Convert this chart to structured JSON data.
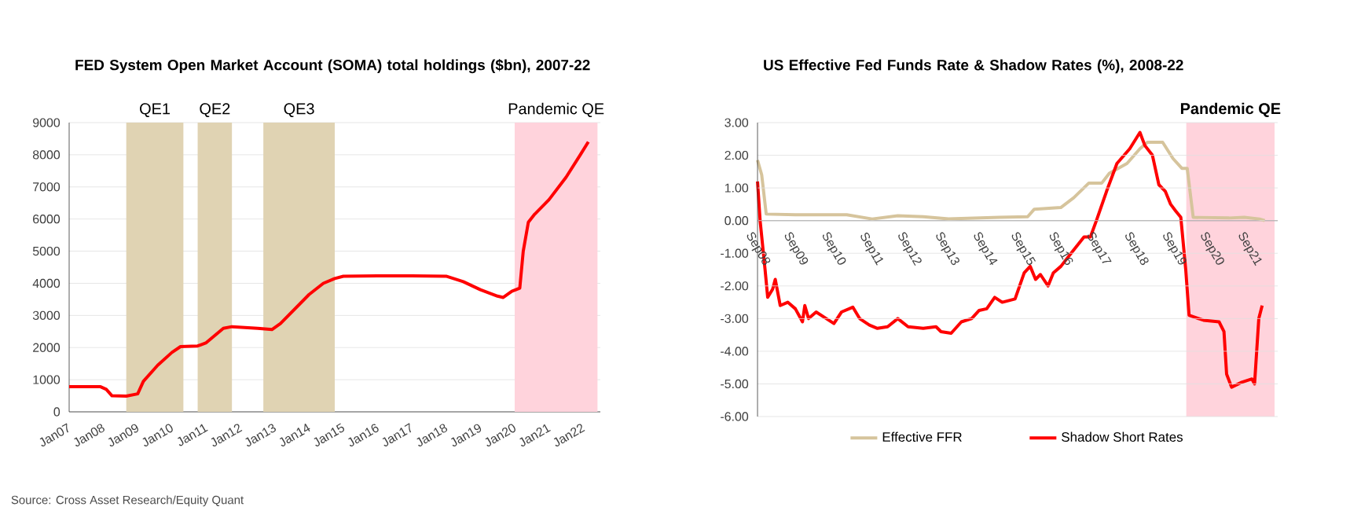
{
  "chart_data": [
    {
      "type": "line",
      "title": "FED System Open Market Account (SOMA) total holdings ($bn), 2007-22",
      "xlim": [
        "2007-01",
        "2022-07"
      ],
      "ylim": [
        0,
        9000
      ],
      "grid": "y",
      "legend": false,
      "xticks": [
        {
          "value": "2007-01",
          "label": "Jan07"
        },
        {
          "value": "2008-01",
          "label": "Jan08"
        },
        {
          "value": "2009-01",
          "label": "Jan09"
        },
        {
          "value": "2010-01",
          "label": "Jan10"
        },
        {
          "value": "2011-01",
          "label": "Jan11"
        },
        {
          "value": "2012-01",
          "label": "Jan12"
        },
        {
          "value": "2013-01",
          "label": "Jan13"
        },
        {
          "value": "2014-01",
          "label": "Jan14"
        },
        {
          "value": "2015-01",
          "label": "Jan15"
        },
        {
          "value": "2016-01",
          "label": "Jan16"
        },
        {
          "value": "2017-01",
          "label": "Jan17"
        },
        {
          "value": "2018-01",
          "label": "Jan18"
        },
        {
          "value": "2019-01",
          "label": "Jan19"
        },
        {
          "value": "2020-01",
          "label": "Jan20"
        },
        {
          "value": "2021-01",
          "label": "Jan21"
        },
        {
          "value": "2022-01",
          "label": "Jan22"
        }
      ],
      "yticks": [
        0,
        1000,
        2000,
        3000,
        4000,
        5000,
        6000,
        7000,
        8000,
        9000
      ],
      "bands": [
        {
          "axis": "x",
          "from": "2008-09",
          "to": "2010-05",
          "label": "QE1",
          "color": "#e0d3b3"
        },
        {
          "axis": "x",
          "from": "2010-10",
          "to": "2011-10",
          "label": "QE2",
          "color": "#e0d3b3"
        },
        {
          "axis": "x",
          "from": "2012-09",
          "to": "2014-10",
          "label": "QE3",
          "color": "#e0d3b3"
        },
        {
          "axis": "x",
          "from": "2020-01",
          "to": "2022-06",
          "label": "Pandemic QE",
          "color": "#ffd3dc"
        }
      ],
      "series": [
        {
          "color": "#ff0000",
          "x": [
            "2007-01",
            "2007-12",
            "2008-02",
            "2008-04",
            "2008-09",
            "2009-01",
            "2009-03",
            "2009-08",
            "2010-01",
            "2010-04",
            "2010-10",
            "2011-01",
            "2011-07",
            "2011-10",
            "2012-07",
            "2012-12",
            "2013-03",
            "2013-08",
            "2014-01",
            "2014-06",
            "2014-10",
            "2015-01",
            "2016-01",
            "2017-01",
            "2018-01",
            "2018-07",
            "2019-01",
            "2019-07",
            "2019-09",
            "2019-12",
            "2020-02-25",
            "2020-04-01",
            "2020-05-25",
            "2020-08",
            "2021-01",
            "2021-07",
            "2021-12",
            "2022-02-25"
          ],
          "values": [
            780,
            780,
            700,
            500,
            490,
            560,
            950,
            1450,
            1850,
            2030,
            2050,
            2150,
            2600,
            2650,
            2600,
            2560,
            2750,
            3200,
            3650,
            4000,
            4150,
            4220,
            4230,
            4230,
            4220,
            4050,
            3800,
            3600,
            3560,
            3750,
            3850,
            5000,
            5900,
            6150,
            6600,
            7300,
            8000,
            8400
          ]
        }
      ],
      "annotations": [
        "Source: Cross Asset Research/Equity Quant"
      ]
    },
    {
      "type": "line",
      "title": "US Effective Fed Funds Rate & Shadow Rates (%), 2008-22",
      "xlim": [
        "2008-09",
        "2022-06"
      ],
      "ylim": [
        -6,
        3
      ],
      "grid": "y",
      "legend": "bottom",
      "xticks": [
        {
          "value": "2008-09",
          "label": "Sep08"
        },
        {
          "value": "2009-09",
          "label": "Sep09"
        },
        {
          "value": "2010-09",
          "label": "Sep10"
        },
        {
          "value": "2011-09",
          "label": "Sep11"
        },
        {
          "value": "2012-09",
          "label": "Sep12"
        },
        {
          "value": "2013-09",
          "label": "Sep13"
        },
        {
          "value": "2014-09",
          "label": "Sep14"
        },
        {
          "value": "2015-09",
          "label": "Sep15"
        },
        {
          "value": "2016-09",
          "label": "Sep16"
        },
        {
          "value": "2017-09",
          "label": "Sep17"
        },
        {
          "value": "2018-09",
          "label": "Sep18"
        },
        {
          "value": "2019-09",
          "label": "Sep19"
        },
        {
          "value": "2020-09",
          "label": "Sep20"
        },
        {
          "value": "2021-09",
          "label": "Sep21"
        }
      ],
      "yticks": [
        {
          "value": 3,
          "label": "3.00"
        },
        {
          "value": 2,
          "label": "2.00"
        },
        {
          "value": 1,
          "label": "1.00"
        },
        {
          "value": 0,
          "label": "0.00"
        },
        {
          "value": -1,
          "label": "-1.00"
        },
        {
          "value": -2,
          "label": "-2.00"
        },
        {
          "value": -3,
          "label": "-3.00"
        },
        {
          "value": -4,
          "label": "-4.00"
        },
        {
          "value": -5,
          "label": "-5.00"
        },
        {
          "value": -6,
          "label": "-6.00"
        }
      ],
      "bands": [
        {
          "axis": "x",
          "from": "2020-01",
          "to": "2022-05",
          "label": "Pandemic QE",
          "color": "#ffd3dc"
        }
      ],
      "series": [
        {
          "name": "Effective FFR",
          "color": "#d6c49c",
          "x": [
            "2008-09-01",
            "2008-10-11",
            "2008-11-24",
            "2009-09-01",
            "2011-01-10",
            "2011-09-12",
            "2012-05-16",
            "2013-01-19",
            "2013-09-19",
            "2015-01-25",
            "2015-10-22",
            "2015-12-25",
            "2016-09-07",
            "2017-01-10",
            "2017-06-04",
            "2017-10-07",
            "2017-12-19",
            "2018-06-07",
            "2018-10-10",
            "2018-12-22",
            "2019-05-16",
            "2019-08-25",
            "2019-11-19",
            "2020-01-10",
            "2020-03-07",
            "2021-02-19",
            "2021-07-13",
            "2021-12-07",
            "2022-01-28"
          ],
          "values": [
            1.85,
            1.4,
            0.2,
            0.18,
            0.18,
            0.05,
            0.15,
            0.12,
            0.05,
            0.1,
            0.12,
            0.35,
            0.4,
            0.7,
            1.15,
            1.15,
            1.45,
            1.75,
            2.2,
            2.4,
            2.4,
            1.9,
            1.6,
            1.6,
            0.1,
            0.08,
            0.1,
            0.05,
            0.0
          ]
        },
        {
          "name": "Shadow Short Rates",
          "color": "#ff0000",
          "x": [
            "2008-09-01",
            "2008-09-26",
            "2008-11-13",
            "2008-12-08",
            "2009-01-25",
            "2009-02-20",
            "2009-04-07",
            "2009-06-19",
            "2009-09-01",
            "2009-11-09",
            "2009-12-01",
            "2010-01-07",
            "2010-03-19",
            "2010-06-26",
            "2010-09-08",
            "2010-11-20",
            "2011-03-08",
            "2011-05-13",
            "2011-08-16",
            "2011-11-02",
            "2012-02-09",
            "2012-05-16",
            "2012-08-24",
            "2013-01-18",
            "2013-05-20",
            "2013-07-07",
            "2013-10-14",
            "2014-01-21",
            "2014-04-29",
            "2014-07-10",
            "2014-09-22",
            "2014-12-08",
            "2015-02-20",
            "2015-06-22",
            "2015-09-19",
            "2015-11-16",
            "2016-01-07",
            "2016-02-23",
            "2016-05-06",
            "2016-06-26",
            "2016-09-08",
            "2016-12-15",
            "2017-04-18",
            "2017-06-19",
            "2017-08-16",
            "2017-11-23",
            "2018-03-01",
            "2018-07-03",
            "2018-10-10",
            "2018-11-27",
            "2019-02-09",
            "2019-04-10",
            "2019-06-11",
            "2019-08-02",
            "2019-09-19",
            "2019-11-09",
            "2019-12-26",
            "2020-01-28",
            "2020-06-15",
            "2020-11-13",
            "2020-12-30",
            "2021-01-25",
            "2021-03-12",
            "2021-06-19",
            "2021-09-26",
            "2021-10-21",
            "2021-12-01",
            "2022-01-03"
          ],
          "values": [
            1.2,
            0.0,
            -1.5,
            -2.35,
            -2.1,
            -1.8,
            -2.6,
            -2.5,
            -2.7,
            -3.1,
            -2.6,
            -3.0,
            -2.8,
            -3.0,
            -3.15,
            -2.8,
            -2.65,
            -3.0,
            -3.2,
            -3.3,
            -3.25,
            -3.0,
            -3.25,
            -3.3,
            -3.25,
            -3.4,
            -3.45,
            -3.1,
            -3.0,
            -2.75,
            -2.7,
            -2.35,
            -2.5,
            -2.4,
            -1.6,
            -1.4,
            -1.8,
            -1.65,
            -2.0,
            -1.6,
            -1.4,
            -1.0,
            -0.5,
            -0.5,
            0.0,
            0.9,
            1.75,
            2.2,
            2.7,
            2.3,
            2.0,
            1.1,
            0.9,
            0.5,
            0.3,
            0.1,
            -1.5,
            -2.9,
            -3.05,
            -3.1,
            -3.4,
            -4.7,
            -5.1,
            -4.95,
            -4.85,
            -5.0,
            -3.0,
            -2.6
          ]
        }
      ]
    }
  ]
}
